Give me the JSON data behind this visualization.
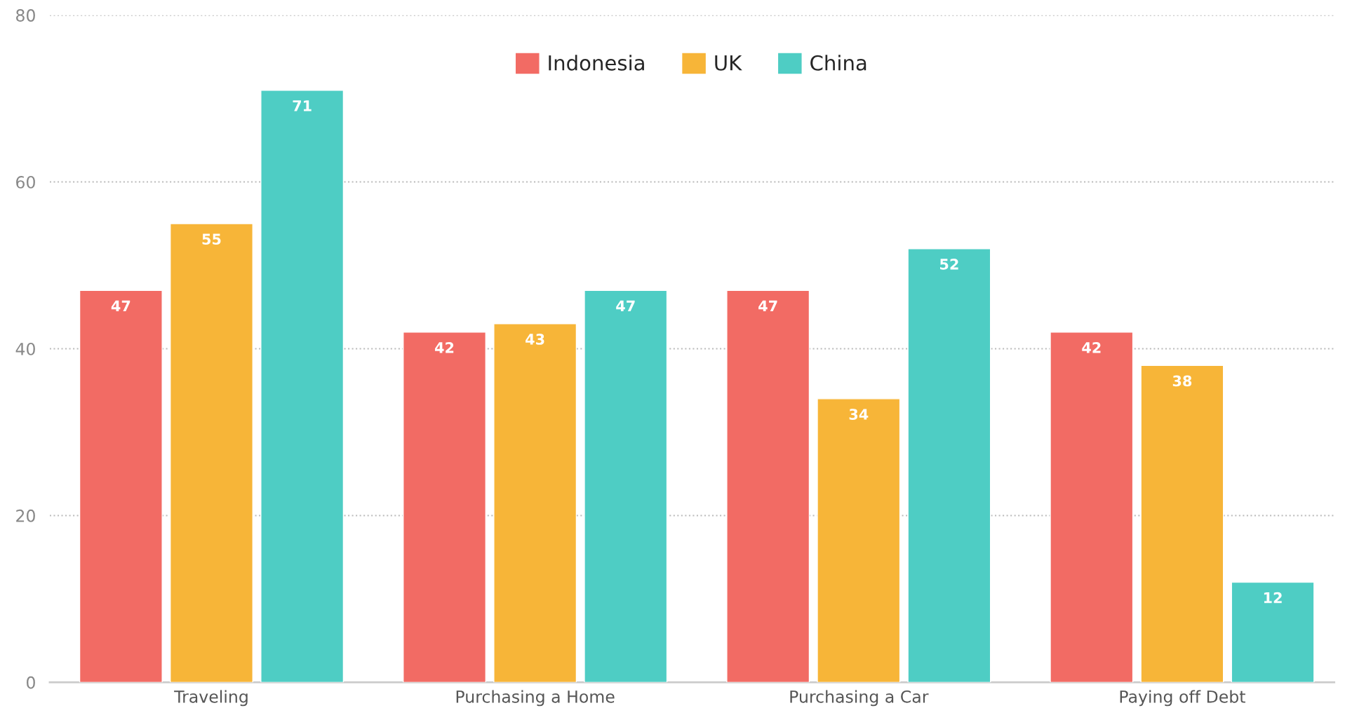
{
  "chart_data": {
    "type": "bar",
    "categories": [
      "Traveling",
      "Purchasing a Home",
      "Purchasing a Car",
      "Paying off Debt"
    ],
    "series": [
      {
        "name": "Indonesia",
        "color": "#f26b64",
        "values": [
          47,
          42,
          47,
          42
        ]
      },
      {
        "name": "UK",
        "color": "#f7b538",
        "values": [
          55,
          43,
          34,
          38
        ]
      },
      {
        "name": "China",
        "color": "#4ecdc4",
        "values": [
          71,
          47,
          52,
          12
        ]
      }
    ],
    "ylim": [
      0,
      80
    ],
    "yticks": [
      0,
      20,
      40,
      60,
      80
    ],
    "grid": "y",
    "legend": "top",
    "data_labels": true
  }
}
